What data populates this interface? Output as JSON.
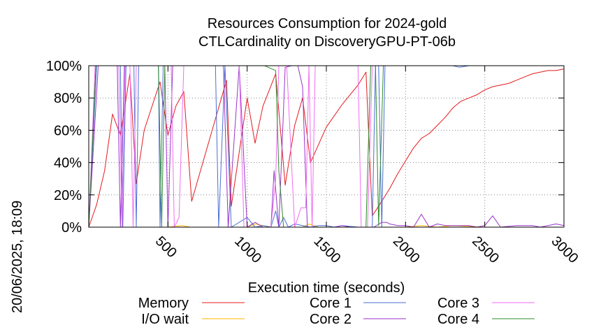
{
  "chart_data": {
    "type": "line",
    "title": "Resources Consumption for 2024-gold",
    "subtitle": "CTLCardinality on DiscoveryGPU-PT-06b",
    "xlabel": "Execution time (seconds)",
    "ylabel": "",
    "side_label": "20/06/2025, 18:09",
    "xlim": [
      0,
      3000
    ],
    "ylim": [
      0,
      100
    ],
    "x_ticks": [
      {
        "v": 500,
        "label": "500"
      },
      {
        "v": 1000,
        "label": "1000"
      },
      {
        "v": 1500,
        "label": "1500"
      },
      {
        "v": 2000,
        "label": "2000"
      },
      {
        "v": 2500,
        "label": "2500"
      },
      {
        "v": 3000,
        "label": "3000"
      }
    ],
    "y_ticks": [
      {
        "v": 0,
        "label": "0%"
      },
      {
        "v": 20,
        "label": "20%"
      },
      {
        "v": 40,
        "label": "40%"
      },
      {
        "v": 60,
        "label": "60%"
      },
      {
        "v": 80,
        "label": "80%"
      },
      {
        "v": 100,
        "label": "100%"
      }
    ],
    "grid": true,
    "legend_position": "bottom",
    "series": [
      {
        "name": "Memory",
        "color": "#e41a1c",
        "points": [
          [
            0,
            0
          ],
          [
            50,
            14
          ],
          [
            100,
            35
          ],
          [
            150,
            70
          ],
          [
            200,
            57
          ],
          [
            260,
            95
          ],
          [
            300,
            27
          ],
          [
            350,
            60
          ],
          [
            450,
            90
          ],
          [
            500,
            57
          ],
          [
            550,
            75
          ],
          [
            600,
            84
          ],
          [
            650,
            16
          ],
          [
            870,
            91
          ],
          [
            900,
            13
          ],
          [
            1000,
            80
          ],
          [
            1050,
            52
          ],
          [
            1100,
            75
          ],
          [
            1180,
            95
          ],
          [
            1240,
            26
          ],
          [
            1300,
            63
          ],
          [
            1350,
            80
          ],
          [
            1400,
            40
          ],
          [
            1500,
            62
          ],
          [
            1600,
            76
          ],
          [
            1700,
            88
          ],
          [
            1750,
            96
          ],
          [
            1790,
            7
          ],
          [
            1850,
            16
          ],
          [
            1900,
            24
          ],
          [
            1950,
            33
          ],
          [
            2000,
            41
          ],
          [
            2050,
            49
          ],
          [
            2100,
            55
          ],
          [
            2150,
            58
          ],
          [
            2200,
            63
          ],
          [
            2250,
            68
          ],
          [
            2300,
            74
          ],
          [
            2350,
            78
          ],
          [
            2400,
            80
          ],
          [
            2450,
            82
          ],
          [
            2500,
            85
          ],
          [
            2550,
            87
          ],
          [
            2600,
            88
          ],
          [
            2650,
            89
          ],
          [
            2700,
            91
          ],
          [
            2750,
            93
          ],
          [
            2800,
            95
          ],
          [
            2850,
            96
          ],
          [
            2900,
            97
          ],
          [
            2950,
            97
          ],
          [
            3000,
            98
          ]
        ]
      },
      {
        "name": "I/O wait",
        "color": "#ffb400",
        "points": [
          [
            0,
            0
          ],
          [
            300,
            0
          ],
          [
            500,
            0
          ],
          [
            590,
            1
          ],
          [
            640,
            0
          ],
          [
            1000,
            0
          ],
          [
            1050,
            2
          ],
          [
            1150,
            0
          ],
          [
            1350,
            0
          ],
          [
            1390,
            2
          ],
          [
            1450,
            0
          ],
          [
            1800,
            0
          ],
          [
            2000,
            0
          ],
          [
            2100,
            1
          ],
          [
            2200,
            0
          ],
          [
            2300,
            1
          ],
          [
            2500,
            0
          ],
          [
            2700,
            0
          ],
          [
            3000,
            0
          ]
        ]
      },
      {
        "name": "Core 1",
        "color": "#4a6fd1",
        "points": [
          [
            0,
            0
          ],
          [
            50,
            100
          ],
          [
            200,
            100
          ],
          [
            215,
            0
          ],
          [
            235,
            100
          ],
          [
            285,
            100
          ],
          [
            300,
            0
          ],
          [
            315,
            100
          ],
          [
            440,
            100
          ],
          [
            450,
            0
          ],
          [
            470,
            100
          ],
          [
            800,
            100
          ],
          [
            820,
            0
          ],
          [
            860,
            100
          ],
          [
            900,
            0
          ],
          [
            1000,
            6
          ],
          [
            1050,
            0
          ],
          [
            1100,
            1
          ],
          [
            1150,
            0
          ],
          [
            1180,
            10
          ],
          [
            1200,
            0
          ],
          [
            1230,
            6
          ],
          [
            1260,
            0
          ],
          [
            1300,
            2
          ],
          [
            1350,
            1
          ],
          [
            1400,
            0
          ],
          [
            1450,
            1
          ],
          [
            1500,
            1
          ],
          [
            1550,
            0
          ],
          [
            1600,
            1
          ],
          [
            1700,
            0
          ],
          [
            1790,
            0
          ],
          [
            1810,
            100
          ],
          [
            1830,
            100
          ],
          [
            1850,
            0
          ],
          [
            1870,
            100
          ],
          [
            2000,
            100
          ],
          [
            2200,
            100
          ],
          [
            2250,
            100
          ],
          [
            2300,
            100
          ],
          [
            2340,
            99
          ],
          [
            2400,
            100
          ],
          [
            3000,
            100
          ]
        ]
      },
      {
        "name": "Core 2",
        "color": "#9932cc",
        "points": [
          [
            0,
            0
          ],
          [
            60,
            100
          ],
          [
            180,
            100
          ],
          [
            200,
            0
          ],
          [
            225,
            100
          ],
          [
            480,
            100
          ],
          [
            500,
            0
          ],
          [
            530,
            100
          ],
          [
            850,
            100
          ],
          [
            880,
            0
          ],
          [
            950,
            100
          ],
          [
            1000,
            0
          ],
          [
            1050,
            3
          ],
          [
            1100,
            0
          ],
          [
            1150,
            0
          ],
          [
            1170,
            35
          ],
          [
            1200,
            0
          ],
          [
            1240,
            99
          ],
          [
            1280,
            100
          ],
          [
            1320,
            100
          ],
          [
            1350,
            87
          ],
          [
            1380,
            0
          ],
          [
            1450,
            0
          ],
          [
            1500,
            0
          ],
          [
            1550,
            0
          ],
          [
            1600,
            1
          ],
          [
            1650,
            0
          ],
          [
            1800,
            0
          ],
          [
            1850,
            3
          ],
          [
            1880,
            3
          ],
          [
            1900,
            2
          ],
          [
            1950,
            1
          ],
          [
            2000,
            1
          ],
          [
            2050,
            0
          ],
          [
            2100,
            8
          ],
          [
            2150,
            0
          ],
          [
            2200,
            2
          ],
          [
            2250,
            1
          ],
          [
            2300,
            1
          ],
          [
            2400,
            1
          ],
          [
            2450,
            0
          ],
          [
            2500,
            1
          ],
          [
            2550,
            7
          ],
          [
            2600,
            0
          ],
          [
            2700,
            1
          ],
          [
            2800,
            1
          ],
          [
            2850,
            0
          ],
          [
            2900,
            1
          ],
          [
            2950,
            2
          ],
          [
            3000,
            1
          ]
        ]
      },
      {
        "name": "Core 3",
        "color": "#f06ef0",
        "points": [
          [
            0,
            0
          ],
          [
            40,
            100
          ],
          [
            190,
            100
          ],
          [
            210,
            0
          ],
          [
            230,
            100
          ],
          [
            260,
            100
          ],
          [
            280,
            0
          ],
          [
            300,
            100
          ],
          [
            520,
            100
          ],
          [
            540,
            0
          ],
          [
            570,
            6
          ],
          [
            600,
            100
          ],
          [
            950,
            100
          ],
          [
            980,
            0
          ],
          [
            1050,
            0
          ],
          [
            1100,
            0
          ],
          [
            1150,
            0
          ],
          [
            1180,
            30
          ],
          [
            1200,
            100
          ],
          [
            1250,
            100
          ],
          [
            1300,
            0
          ],
          [
            1340,
            12
          ],
          [
            1370,
            12
          ],
          [
            1390,
            100
          ],
          [
            1410,
            0
          ],
          [
            1430,
            100
          ],
          [
            1700,
            100
          ],
          [
            1720,
            0
          ],
          [
            1760,
            0
          ],
          [
            1790,
            100
          ],
          [
            3000,
            100
          ]
        ]
      },
      {
        "name": "Core 4",
        "color": "#2e8b2e",
        "points": [
          [
            0,
            0
          ],
          [
            45,
            100
          ],
          [
            420,
            100
          ],
          [
            440,
            100
          ],
          [
            460,
            0
          ],
          [
            480,
            100
          ],
          [
            1110,
            100
          ],
          [
            1180,
            97
          ],
          [
            1200,
            35
          ],
          [
            1230,
            0
          ],
          [
            1260,
            0
          ],
          [
            1300,
            0
          ],
          [
            1350,
            0
          ],
          [
            1400,
            0
          ],
          [
            1500,
            0
          ],
          [
            1750,
            0
          ],
          [
            1780,
            100
          ],
          [
            1810,
            100
          ],
          [
            1830,
            1
          ],
          [
            1860,
            100
          ],
          [
            3000,
            100
          ]
        ]
      }
    ]
  }
}
